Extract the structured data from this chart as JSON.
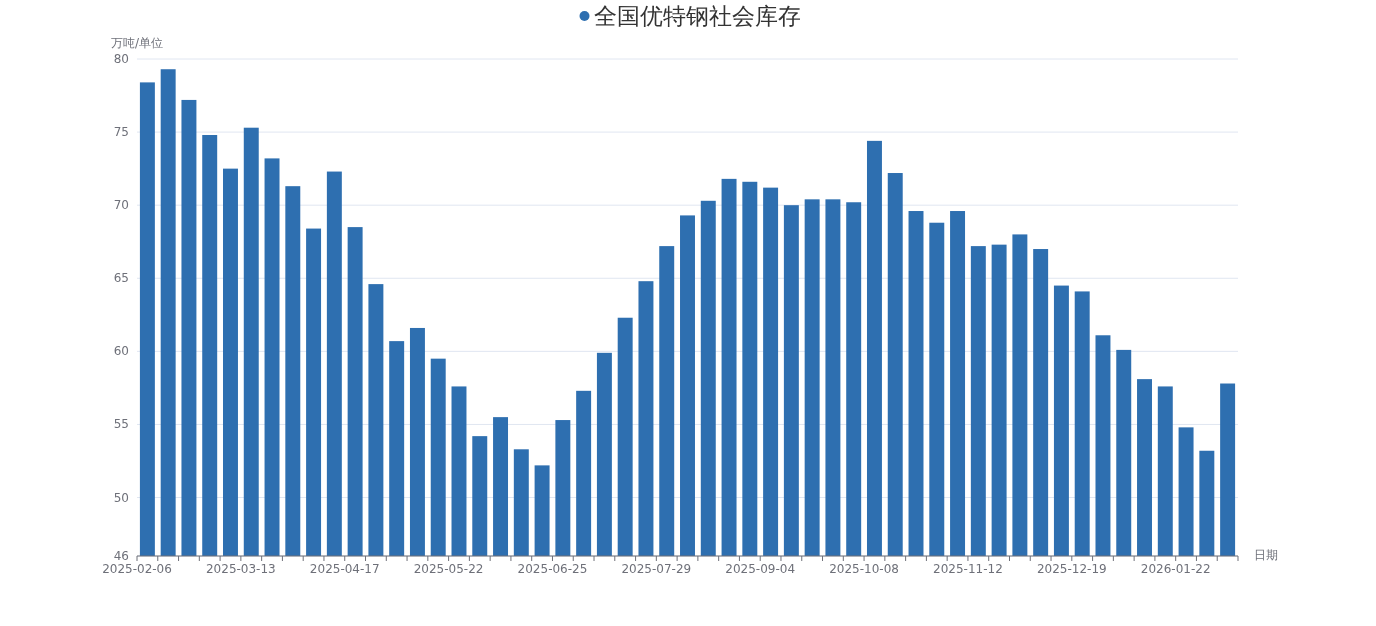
{
  "chart_data": {
    "type": "bar",
    "xlabel": "日期",
    "ylabel": "万吨/单位",
    "legend": "top",
    "categories": [
      "2025-02-06",
      null,
      null,
      null,
      null,
      "2025-03-13",
      null,
      null,
      null,
      null,
      "2025-04-17",
      null,
      null,
      null,
      null,
      "2025-05-22",
      null,
      null,
      null,
      null,
      "2025-06-25",
      null,
      null,
      null,
      null,
      "2025-07-29",
      null,
      null,
      null,
      null,
      "2025-09-04",
      null,
      null,
      null,
      null,
      "2025-10-08",
      null,
      null,
      null,
      null,
      "2025-11-12",
      null,
      null,
      null,
      null,
      "2025-12-19",
      null,
      null,
      null,
      null,
      "2026-01-22",
      null,
      null
    ],
    "series": [
      {
        "name": "全国优特钢社会库存",
        "color": "#2e6fb0",
        "values": [
          78.4,
          79.3,
          77.2,
          74.8,
          72.5,
          75.3,
          73.2,
          71.3,
          68.4,
          72.3,
          68.5,
          64.6,
          60.7,
          61.6,
          59.5,
          57.6,
          54.2,
          55.5,
          53.3,
          52.2,
          55.3,
          57.3,
          59.9,
          62.3,
          64.8,
          67.2,
          69.3,
          70.3,
          71.8,
          71.6,
          71.2,
          70.0,
          70.4,
          70.4,
          70.2,
          74.4,
          72.2,
          69.6,
          68.8,
          69.6,
          67.2,
          67.3,
          68.0,
          67.0,
          64.5,
          64.1,
          61.1,
          60.1,
          58.1,
          57.6,
          54.8,
          53.2,
          57.8
        ]
      }
    ],
    "ylim": [
      46,
      80
    ],
    "yticks": [
      46,
      50,
      55,
      60,
      65,
      70,
      75,
      80
    ],
    "grid": "y"
  }
}
